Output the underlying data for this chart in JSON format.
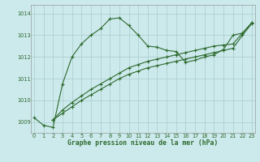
{
  "title": "Graphe pression niveau de la mer (hPa)",
  "bg_color": "#cce9ec",
  "line_color": "#2d6a2d",
  "grid_color": "#b8d8dc",
  "ylim": [
    1008.5,
    1014.4
  ],
  "xlim": [
    -0.3,
    23.3
  ],
  "yticks": [
    1009,
    1010,
    1011,
    1012,
    1013,
    1014
  ],
  "xticks": [
    0,
    1,
    2,
    3,
    4,
    5,
    6,
    7,
    8,
    9,
    10,
    11,
    12,
    13,
    14,
    15,
    16,
    17,
    18,
    19,
    20,
    21,
    22,
    23
  ],
  "s1_x": [
    0,
    1,
    2,
    3,
    4,
    5,
    6,
    7,
    8,
    9,
    10,
    11,
    12,
    13,
    14,
    15,
    16,
    17,
    18,
    19,
    20,
    21,
    22,
    23
  ],
  "s1_y": [
    1009.2,
    1008.85,
    1008.75,
    1010.75,
    1012.0,
    1012.6,
    1013.0,
    1013.3,
    1013.75,
    1013.8,
    1013.45,
    1013.0,
    1012.5,
    1012.45,
    1012.3,
    1012.25,
    1011.75,
    1011.85,
    1012.0,
    1012.1,
    1012.35,
    1013.0,
    1013.1,
    1013.58
  ],
  "s2_x": [
    2,
    3,
    4,
    5,
    6,
    7,
    8,
    9,
    10,
    11,
    12,
    13,
    14,
    15,
    16,
    17,
    18,
    19,
    20,
    21,
    22,
    23
  ],
  "s2_y": [
    1009.1,
    1009.55,
    1009.9,
    1010.2,
    1010.5,
    1010.75,
    1011.0,
    1011.25,
    1011.5,
    1011.65,
    1011.8,
    1011.9,
    1012.0,
    1012.1,
    1012.2,
    1012.3,
    1012.4,
    1012.5,
    1012.55,
    1012.6,
    1013.1,
    1013.58
  ],
  "s3_x": [
    2,
    3,
    4,
    5,
    6,
    7,
    8,
    9,
    10,
    11,
    12,
    13,
    14,
    15,
    16,
    17,
    18,
    19,
    20,
    21,
    22,
    23
  ],
  "s3_y": [
    1009.1,
    1009.4,
    1009.7,
    1010.0,
    1010.25,
    1010.5,
    1010.75,
    1011.0,
    1011.2,
    1011.35,
    1011.5,
    1011.6,
    1011.7,
    1011.8,
    1011.9,
    1012.0,
    1012.1,
    1012.2,
    1012.3,
    1012.4,
    1013.0,
    1013.55
  ]
}
